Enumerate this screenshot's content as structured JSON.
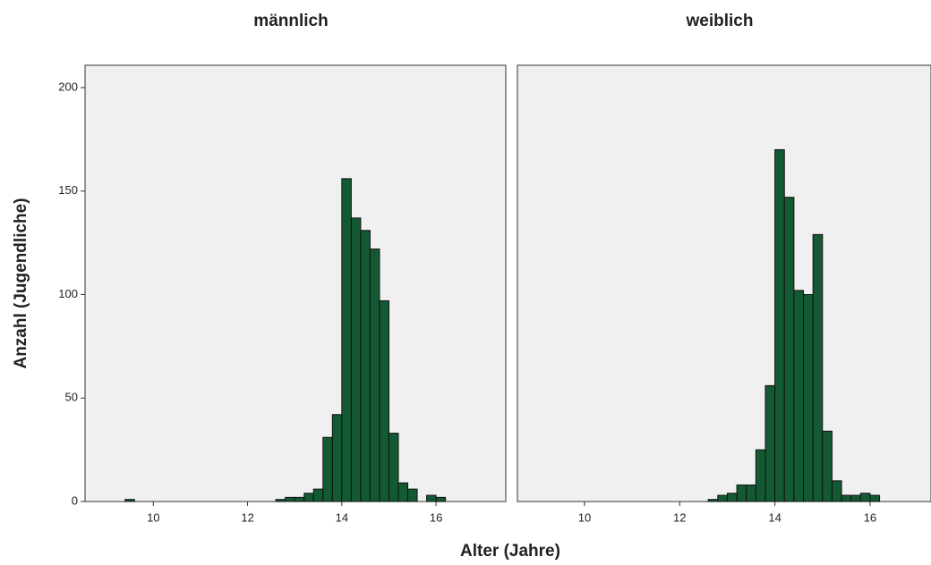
{
  "chart_data": [
    {
      "type": "histogram",
      "title": "männlich",
      "color": "#135a33",
      "bins": [
        9.4,
        9.6,
        9.8,
        10.0,
        10.2,
        10.4,
        10.6,
        10.8,
        11.0,
        11.2,
        11.4,
        11.6,
        11.8,
        12.0,
        12.2,
        12.4,
        12.6,
        12.8,
        13.0,
        13.2,
        13.4,
        13.6,
        13.8,
        14.0,
        14.2,
        14.4,
        14.6,
        14.8,
        15.0,
        15.2,
        15.4,
        15.6,
        15.8,
        16.0,
        16.2
      ],
      "values": [
        1,
        0,
        0,
        0,
        0,
        0,
        0,
        0,
        0,
        0,
        0,
        0,
        0,
        0,
        0,
        0,
        1,
        2,
        2,
        4,
        6,
        31,
        42,
        156,
        137,
        131,
        122,
        97,
        33,
        9,
        6,
        0,
        3,
        2
      ],
      "xlim": [
        8.55,
        17.48
      ],
      "xticks": [
        10,
        12,
        14,
        16
      ],
      "ylim": [
        0,
        210.8
      ],
      "yticks": [
        0,
        50,
        100,
        150,
        200
      ]
    },
    {
      "type": "histogram",
      "title": "weiblich",
      "color": "#135a33",
      "bins": [
        9.4,
        9.6,
        9.8,
        10.0,
        10.2,
        10.4,
        10.6,
        10.8,
        11.0,
        11.2,
        11.4,
        11.6,
        11.8,
        12.0,
        12.2,
        12.4,
        12.6,
        12.8,
        13.0,
        13.2,
        13.4,
        13.6,
        13.8,
        14.0,
        14.2,
        14.4,
        14.6,
        14.8,
        15.0,
        15.2,
        15.4,
        15.6,
        15.8,
        16.0,
        16.2
      ],
      "values": [
        0,
        0,
        0,
        0,
        0,
        0,
        0,
        0,
        0,
        0,
        0,
        0,
        0,
        0,
        0,
        0,
        1,
        3,
        4,
        8,
        8,
        25,
        56,
        170,
        147,
        102,
        100,
        129,
        34,
        10,
        3,
        3,
        4,
        3
      ],
      "xlim": [
        8.59,
        17.28
      ],
      "xticks": [
        10,
        12,
        14,
        16
      ],
      "ylim": [
        0,
        210.8
      ]
    }
  ],
  "xlabel": "Alter (Jahre)",
  "ylabel": "Anzahl (Jugendliche)"
}
